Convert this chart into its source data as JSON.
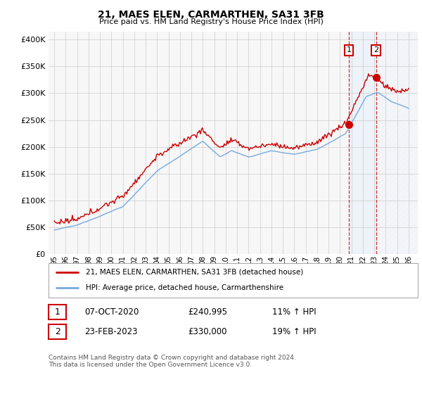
{
  "title": "21, MAES ELEN, CARMARTHEN, SA31 3FB",
  "subtitle": "Price paid vs. HM Land Registry's House Price Index (HPI)",
  "ylabel_ticks": [
    "£0",
    "£50K",
    "£100K",
    "£150K",
    "£200K",
    "£250K",
    "£300K",
    "£350K",
    "£400K"
  ],
  "ytick_vals": [
    0,
    50000,
    100000,
    150000,
    200000,
    250000,
    300000,
    350000,
    400000
  ],
  "ylim": [
    0,
    415000
  ],
  "xlim_start": 1994.5,
  "xlim_end": 2026.8,
  "x_ticks": [
    1995,
    1996,
    1997,
    1998,
    1999,
    2000,
    2001,
    2002,
    2003,
    2004,
    2005,
    2006,
    2007,
    2008,
    2009,
    2010,
    2011,
    2012,
    2013,
    2014,
    2015,
    2016,
    2017,
    2018,
    2019,
    2020,
    2021,
    2022,
    2023,
    2024,
    2025,
    2026
  ],
  "sale1_x": 2020.77,
  "sale1_y": 240995,
  "sale2_x": 2023.15,
  "sale2_y": 330000,
  "legend_label_red": "21, MAES ELEN, CARMARTHEN, SA31 3FB (detached house)",
  "legend_label_blue": "HPI: Average price, detached house, Carmarthenshire",
  "table_row1": [
    "1",
    "07-OCT-2020",
    "£240,995",
    "11% ↑ HPI"
  ],
  "table_row2": [
    "2",
    "23-FEB-2023",
    "£330,000",
    "19% ↑ HPI"
  ],
  "footnote": "Contains HM Land Registry data © Crown copyright and database right 2024.\nThis data is licensed under the Open Government Licence v3.0.",
  "red_color": "#cc0000",
  "blue_color": "#77aadd",
  "shaded_color": "#ddeeff",
  "background_color": "#ffffff",
  "grid_color": "#cccccc",
  "chart_bg": "#f7f7f7"
}
